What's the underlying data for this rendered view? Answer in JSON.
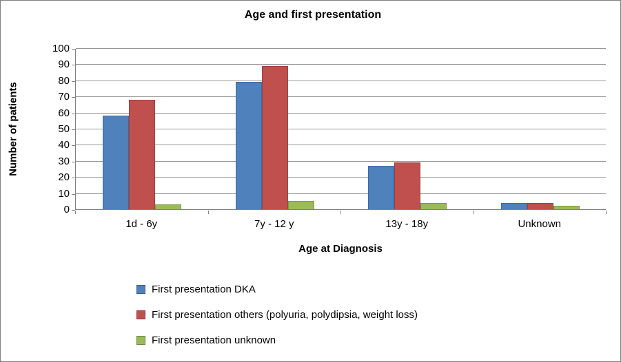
{
  "chart_data": {
    "type": "bar",
    "title": "Age and first presentation",
    "xlabel": "Age at Diagnosis",
    "ylabel": "Number of patients",
    "categories": [
      "1d - 6y",
      "7y - 12 y",
      "13y - 18y",
      "Unknown"
    ],
    "series": [
      {
        "name": "First presentation DKA",
        "color": "#4F81BD",
        "values": [
          58,
          79,
          27,
          4
        ]
      },
      {
        "name": "First presentation others (polyuria, polydipsia, weight loss)",
        "color": "#C0504D",
        "values": [
          68,
          89,
          29,
          4
        ]
      },
      {
        "name": "First presentation unknown",
        "color": "#9BBB59",
        "values": [
          3,
          5,
          4,
          2
        ]
      }
    ],
    "ylim": [
      0,
      100
    ],
    "ytick_step": 10,
    "yticks": [
      0,
      10,
      20,
      30,
      40,
      50,
      60,
      70,
      80,
      90,
      100
    ],
    "grid": true,
    "legend_position": "bottom-left"
  },
  "colors": {
    "axis": "#808080",
    "gridline": "#969696",
    "text": "#000000",
    "background": "#FFFFFF"
  }
}
